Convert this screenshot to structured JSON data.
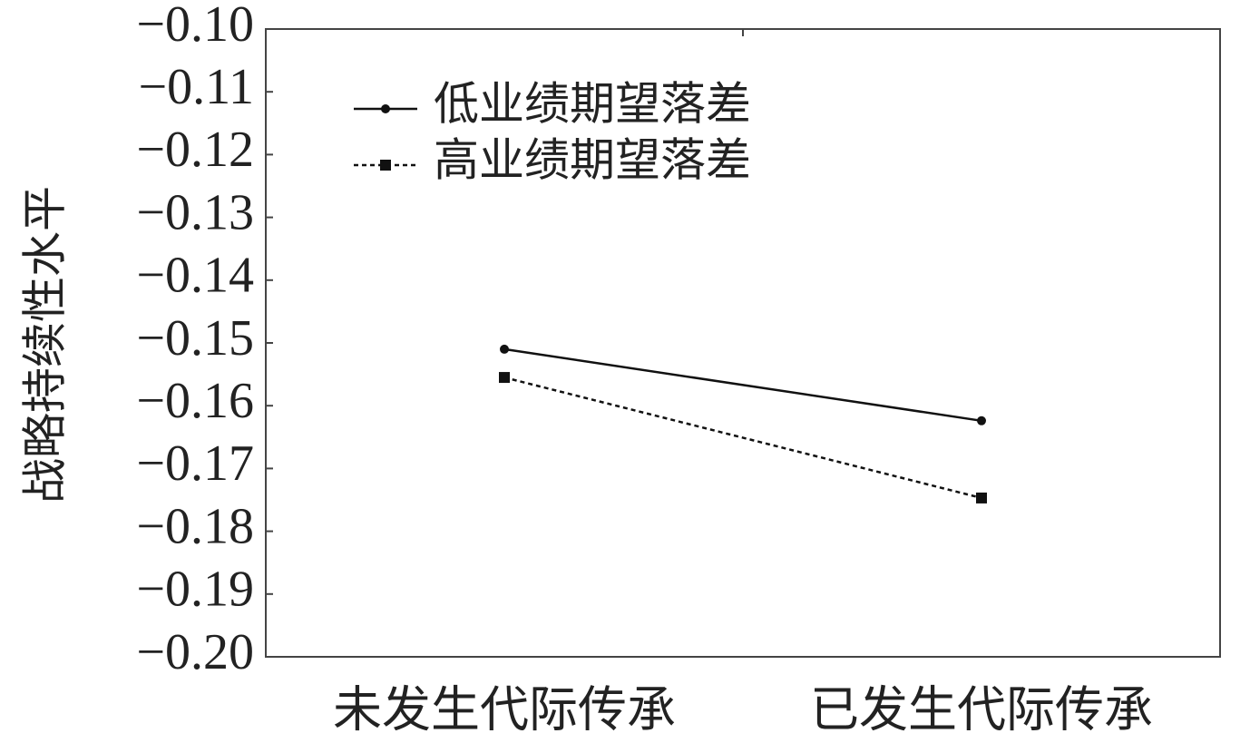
{
  "chart_data": {
    "type": "line",
    "y_label": "战略持续性水平",
    "categories": [
      "未发生代际传承",
      "已发生代际传承"
    ],
    "series": [
      {
        "name": "低业绩期望落差",
        "color": "#111111",
        "dash": "none",
        "marker": "circle",
        "values": [
          -0.151,
          -0.1624
        ]
      },
      {
        "name": "高业绩期望落差",
        "color": "#111111",
        "dash": "5,4",
        "marker": "square",
        "values": [
          -0.1555,
          -0.1747
        ]
      }
    ],
    "ylim": [
      -0.2,
      -0.1
    ],
    "yticks": [
      {
        "value": -0.1,
        "label": "−0.10"
      },
      {
        "value": -0.11,
        "label": "−0.11"
      },
      {
        "value": -0.12,
        "label": "−0.12"
      },
      {
        "value": -0.13,
        "label": "−0.13"
      },
      {
        "value": -0.14,
        "label": "−0.14"
      },
      {
        "value": -0.15,
        "label": "−0.15"
      },
      {
        "value": -0.16,
        "label": "−0.16"
      },
      {
        "value": -0.17,
        "label": "−0.17"
      },
      {
        "value": -0.18,
        "label": "−0.18"
      },
      {
        "value": -0.19,
        "label": "−0.19"
      },
      {
        "value": -0.2,
        "label": "−0.20"
      }
    ],
    "legend": "upper left"
  }
}
